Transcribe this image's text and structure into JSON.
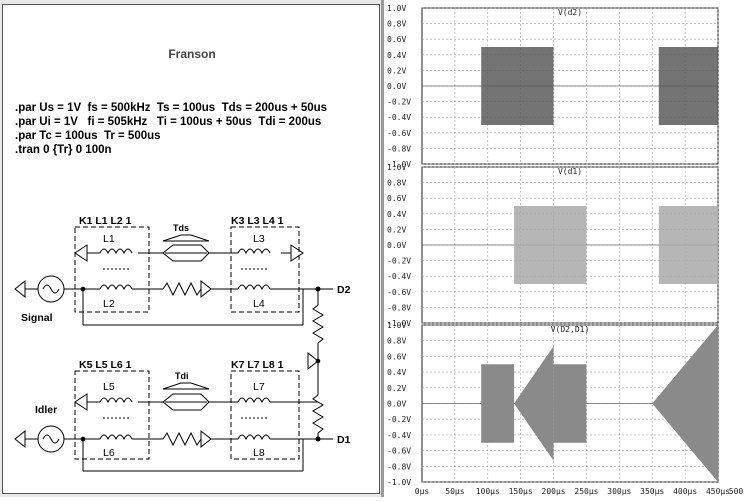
{
  "schematic": {
    "title": "Franson",
    "directives": [
      ".par Us = 1V  fs = 500kHz  Ts = 100us  Tds = 200us + 50us",
      ".par Ui = 1V   fi = 505kHz   Ti = 100us + 50us  Tdi = 200us",
      ".par Tc = 100us  Tr = 500us",
      ".tran 0 {Tr} 0 100n"
    ],
    "labels": {
      "k_top_left": "K1 L1 L2 1",
      "k_top_right": "K3 L3 L4 1",
      "k_bot_left": "K5 L5 L6 1",
      "k_bot_right": "K7 L7 L8 1",
      "tds": "Tds",
      "tdi": "Tdi",
      "l1": "L1",
      "l2": "L2",
      "l3": "L3",
      "l4": "L4",
      "l5": "L5",
      "l6": "L6",
      "l7": "L7",
      "l8": "L8",
      "signal": "Signal",
      "idler": "Idler",
      "d2": "D2",
      "d1": "D1"
    }
  },
  "waveform_panes": [
    {
      "title": "V(d2)"
    },
    {
      "title": "V(d1)"
    },
    {
      "title": "V(D2,D1)"
    }
  ],
  "y_ticks": [
    "1.0V",
    "0.8V",
    "0.6V",
    "0.4V",
    "0.2V",
    "0.0V",
    "-0.2V",
    "-0.4V",
    "-0.6V",
    "-0.8V",
    "-1.0V"
  ],
  "x_ticks": [
    "0µs",
    "50µs",
    "100µs",
    "150µs",
    "200µs",
    "250µs",
    "300µs",
    "350µs",
    "400µs",
    "450µs",
    "500"
  ],
  "colors": {
    "trace_d2": "#5a5a5a",
    "trace_d1": "#a9a9a9",
    "trace_diff": "#8a8a8a",
    "grid": "#9c9c9c"
  }
}
